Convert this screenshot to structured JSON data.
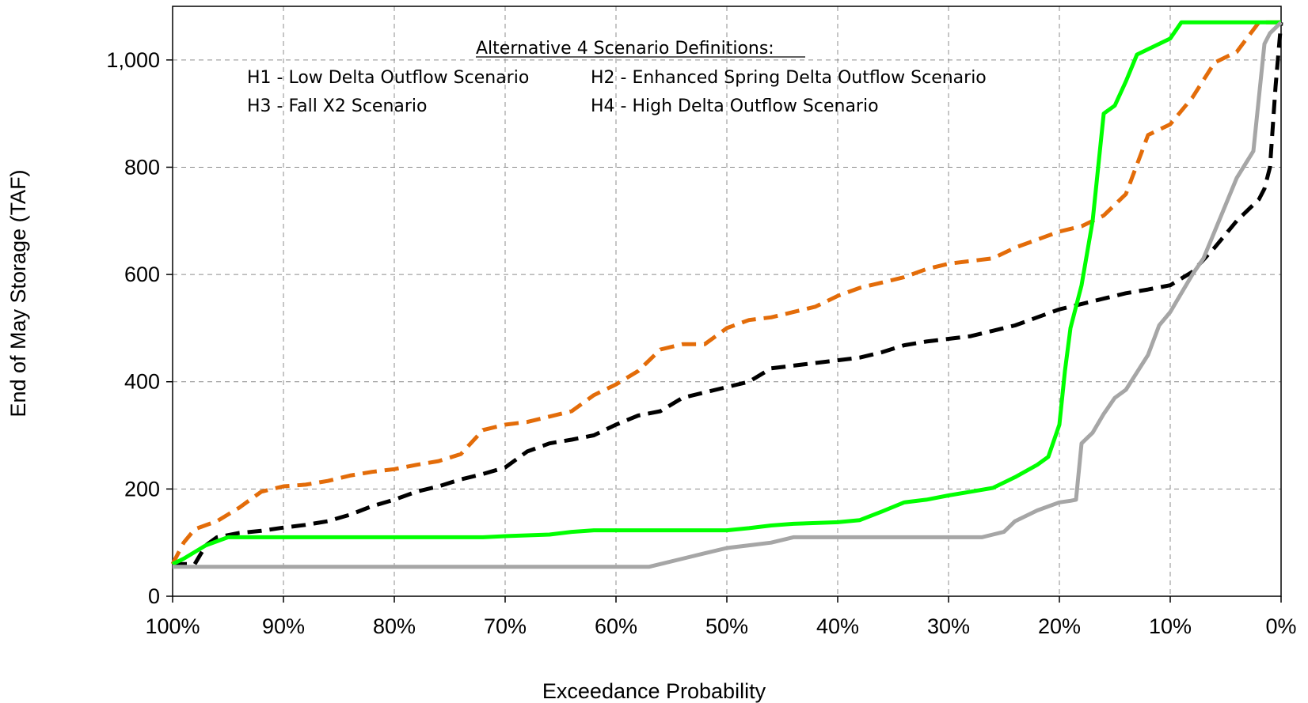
{
  "chart_data": {
    "type": "line",
    "title": "",
    "xlabel": "Exceedance Probability",
    "ylabel": "End of  May Storage (TAF)",
    "xlim": [
      100,
      0
    ],
    "ylim": [
      0,
      1100
    ],
    "x_ticks": [
      "100%",
      "90%",
      "80%",
      "70%",
      "60%",
      "50%",
      "40%",
      "30%",
      "20%",
      "10%",
      "0%"
    ],
    "y_ticks": [
      "0",
      "200",
      "400",
      "600",
      "800",
      "1,000"
    ],
    "grid": true,
    "annotation": {
      "heading": "Alternative 4 Scenario Definitions:",
      "h1": "H1 - Low Delta Outflow Scenario",
      "h2": "H2 - Enhanced Spring Delta Outflow Scenario",
      "h3": "H3 - Fall X2 Scenario",
      "h4": "H4 - High Delta Outflow Scenario"
    },
    "series": [
      {
        "color": "#E36C09",
        "dash": "dashed",
        "x": [
          100,
          99,
          98,
          96,
          94,
          92,
          90,
          88,
          86,
          84,
          82,
          80,
          78,
          76,
          74,
          72,
          70,
          68,
          66,
          64,
          62,
          60,
          58,
          56,
          54,
          52,
          50,
          48,
          46,
          44,
          42,
          40,
          38,
          36,
          34,
          32,
          30,
          28,
          26,
          24,
          22,
          20,
          18,
          16,
          14,
          12,
          10,
          8,
          6,
          4,
          2,
          0
        ],
        "y": [
          60,
          100,
          125,
          140,
          165,
          195,
          205,
          208,
          215,
          225,
          232,
          237,
          245,
          252,
          265,
          310,
          320,
          325,
          335,
          345,
          375,
          395,
          420,
          460,
          470,
          470,
          500,
          515,
          520,
          530,
          540,
          560,
          575,
          585,
          595,
          610,
          620,
          625,
          630,
          650,
          665,
          680,
          690,
          710,
          750,
          860,
          880,
          930,
          995,
          1015,
          1070,
          1070
        ]
      },
      {
        "color": "#000000",
        "dash": "dashed",
        "x": [
          100,
          98,
          97,
          96,
          94,
          92,
          90,
          88,
          86,
          84,
          82,
          80,
          78,
          76,
          74,
          72,
          70,
          68,
          66,
          64,
          62,
          60,
          58,
          56,
          54,
          52,
          50,
          48,
          46,
          44,
          42,
          40,
          38,
          36,
          34,
          32,
          30,
          28,
          26,
          24,
          22,
          20,
          18,
          16,
          14,
          12,
          10,
          8,
          6,
          4,
          2,
          1.5,
          1,
          0.5,
          0
        ],
        "y": [
          60,
          60,
          95,
          110,
          118,
          122,
          128,
          133,
          140,
          152,
          168,
          180,
          195,
          205,
          218,
          228,
          240,
          270,
          285,
          292,
          300,
          320,
          337,
          345,
          370,
          380,
          390,
          400,
          425,
          430,
          435,
          440,
          445,
          455,
          468,
          475,
          480,
          485,
          495,
          505,
          520,
          535,
          545,
          555,
          565,
          572,
          580,
          605,
          650,
          700,
          740,
          760,
          800,
          950,
          1070
        ]
      },
      {
        "color": "#00FF00",
        "dash": "solid",
        "x": [
          100,
          99,
          97,
          95,
          90,
          80,
          72,
          70,
          66,
          64,
          62,
          58,
          54,
          50,
          48,
          46,
          44,
          40,
          38,
          36,
          34,
          32,
          30,
          28,
          26,
          24,
          22,
          21,
          20,
          19.5,
          19,
          18,
          17,
          16,
          15,
          14,
          13,
          12,
          11,
          10,
          9,
          8,
          0
        ],
        "y": [
          60,
          70,
          95,
          110,
          110,
          110,
          110,
          112,
          115,
          120,
          123,
          123,
          123,
          123,
          127,
          132,
          135,
          138,
          142,
          158,
          175,
          180,
          188,
          195,
          202,
          222,
          245,
          260,
          320,
          420,
          500,
          580,
          700,
          900,
          915,
          960,
          1010,
          1020,
          1030,
          1040,
          1070,
          1070,
          1070
        ]
      },
      {
        "color": "#A6A6A6",
        "dash": "solid",
        "x": [
          100,
          57,
          56,
          54,
          52,
          50,
          48,
          46,
          44,
          40,
          36,
          30,
          27,
          26,
          25,
          24,
          22,
          20,
          19,
          18.5,
          18,
          17,
          16,
          15,
          14,
          12,
          11,
          10,
          9,
          8,
          7,
          6,
          5,
          4,
          2.5,
          1.5,
          1,
          0
        ],
        "y": [
          55,
          55,
          60,
          70,
          80,
          90,
          95,
          100,
          110,
          110,
          110,
          110,
          110,
          115,
          120,
          140,
          160,
          175,
          178,
          180,
          285,
          305,
          340,
          370,
          385,
          450,
          505,
          530,
          565,
          600,
          630,
          680,
          730,
          780,
          830,
          1030,
          1050,
          1070
        ]
      }
    ]
  }
}
